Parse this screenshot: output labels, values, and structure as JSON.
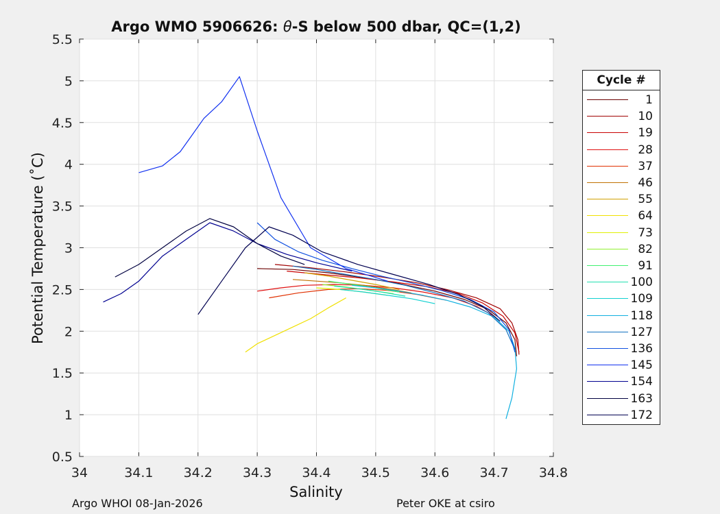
{
  "chart_data": {
    "type": "line",
    "title": "Argo WMO 5906626: θ-S below 500 dbar,  QC=(1,2)",
    "title_parts": {
      "prefix": "Argo WMO 5906626: ",
      "symbol": "θ",
      "suffix": "-S below 500 dbar,  QC=(1,2)"
    },
    "xlabel": "Salinity",
    "ylabel": "Potential Temperature (˚C)",
    "xlim": [
      34,
      34.8
    ],
    "ylim": [
      0.5,
      5.5
    ],
    "xticks": [
      "34",
      "34.1",
      "34.2",
      "34.3",
      "34.4",
      "34.5",
      "34.6",
      "34.7",
      "34.8"
    ],
    "yticks": [
      "0.5",
      "1",
      "1.5",
      "2",
      "2.5",
      "3",
      "3.5",
      "4",
      "4.5",
      "5",
      "5.5"
    ],
    "grid": true,
    "legend_title": "Cycle #",
    "legend_position": "outside-right",
    "legend": [
      {
        "label": "1",
        "color": "#6a0000"
      },
      {
        "label": "10",
        "color": "#a00000"
      },
      {
        "label": "19",
        "color": "#c80000"
      },
      {
        "label": "28",
        "color": "#e01010"
      },
      {
        "label": "37",
        "color": "#e03000"
      },
      {
        "label": "46",
        "color": "#c07000"
      },
      {
        "label": "55",
        "color": "#d0a000"
      },
      {
        "label": "64",
        "color": "#f0e000"
      },
      {
        "label": "73",
        "color": "#e0f000"
      },
      {
        "label": "82",
        "color": "#90f030"
      },
      {
        "label": "91",
        "color": "#40f070"
      },
      {
        "label": "100",
        "color": "#20e0b0"
      },
      {
        "label": "109",
        "color": "#10d0d0"
      },
      {
        "label": "118",
        "color": "#10b0e0"
      },
      {
        "label": "127",
        "color": "#1070c0"
      },
      {
        "label": "136",
        "color": "#1050e0"
      },
      {
        "label": "145",
        "color": "#1030f0"
      },
      {
        "label": "154",
        "color": "#000090"
      },
      {
        "label": "163",
        "color": "#000040"
      },
      {
        "label": "172",
        "color": "#000050"
      }
    ],
    "series": [
      {
        "name": "1",
        "color": "#6a0000",
        "x": [
          34.3,
          34.36,
          34.42,
          34.48,
          34.54,
          34.6,
          34.65,
          34.69,
          34.72,
          34.735,
          34.738
        ],
        "y": [
          2.75,
          2.74,
          2.7,
          2.64,
          2.57,
          2.48,
          2.38,
          2.26,
          2.1,
          1.9,
          1.7
        ]
      },
      {
        "name": "10",
        "color": "#a00000",
        "x": [
          34.33,
          34.39,
          34.45,
          34.51,
          34.57,
          34.62,
          34.67,
          34.71,
          34.73,
          34.74,
          34.742
        ],
        "y": [
          2.8,
          2.76,
          2.71,
          2.65,
          2.58,
          2.5,
          2.4,
          2.27,
          2.1,
          1.9,
          1.72
        ]
      },
      {
        "name": "19",
        "color": "#c80000",
        "x": [
          34.35,
          34.41,
          34.47,
          34.53,
          34.59,
          34.64,
          34.68,
          34.715,
          34.735,
          34.742
        ],
        "y": [
          2.72,
          2.68,
          2.64,
          2.59,
          2.53,
          2.45,
          2.34,
          2.18,
          1.98,
          1.75
        ]
      },
      {
        "name": "28",
        "color": "#e01010",
        "x": [
          34.3,
          34.34,
          34.38,
          34.43,
          34.48,
          34.53,
          34.58,
          34.63,
          34.67,
          34.7
        ],
        "y": [
          2.48,
          2.52,
          2.55,
          2.56,
          2.55,
          2.52,
          2.47,
          2.4,
          2.3,
          2.18
        ]
      },
      {
        "name": "37",
        "color": "#e03000",
        "x": [
          34.32,
          34.37,
          34.42,
          34.47,
          34.52,
          34.57,
          34.62
        ],
        "y": [
          2.4,
          2.46,
          2.5,
          2.51,
          2.49,
          2.44,
          2.37
        ]
      },
      {
        "name": "46",
        "color": "#c07000",
        "x": [
          34.36,
          34.4,
          34.44,
          34.48,
          34.52,
          34.56
        ],
        "y": [
          2.62,
          2.6,
          2.58,
          2.55,
          2.51,
          2.46
        ]
      },
      {
        "name": "55",
        "color": "#d0a000",
        "x": [
          34.38,
          34.42,
          34.46,
          34.5,
          34.54
        ],
        "y": [
          2.7,
          2.66,
          2.61,
          2.56,
          2.5
        ]
      },
      {
        "name": "64",
        "color": "#f0e000",
        "x": [
          34.28,
          34.3,
          34.33,
          34.36,
          34.39,
          34.42,
          34.45
        ],
        "y": [
          1.75,
          1.85,
          1.95,
          2.05,
          2.15,
          2.28,
          2.4
        ]
      },
      {
        "name": "73",
        "color": "#e0f000",
        "x": [
          34.4,
          34.44,
          34.48,
          34.52
        ],
        "y": [
          2.52,
          2.5,
          2.47,
          2.43
        ]
      },
      {
        "name": "82",
        "color": "#90f030",
        "x": [
          34.41,
          34.45,
          34.49,
          34.53
        ],
        "y": [
          2.56,
          2.53,
          2.49,
          2.45
        ]
      },
      {
        "name": "91",
        "color": "#40f070",
        "x": [
          34.42,
          34.46,
          34.5,
          34.54
        ],
        "y": [
          2.6,
          2.56,
          2.52,
          2.47
        ]
      },
      {
        "name": "100",
        "color": "#20e0b0",
        "x": [
          34.43,
          34.47,
          34.51,
          34.55
        ],
        "y": [
          2.54,
          2.51,
          2.47,
          2.42
        ]
      },
      {
        "name": "109",
        "color": "#10d0d0",
        "x": [
          34.44,
          34.48,
          34.52,
          34.56,
          34.6
        ],
        "y": [
          2.5,
          2.47,
          2.43,
          2.39,
          2.33
        ]
      },
      {
        "name": "118",
        "color": "#10b0e0",
        "x": [
          34.46,
          34.5,
          34.54,
          34.58,
          34.62,
          34.66,
          34.7,
          34.725,
          34.735,
          34.738,
          34.73,
          34.72
        ],
        "y": [
          2.55,
          2.52,
          2.48,
          2.43,
          2.37,
          2.29,
          2.17,
          2.0,
          1.8,
          1.55,
          1.2,
          0.95
        ]
      },
      {
        "name": "127",
        "color": "#1070c0",
        "x": [
          34.36,
          34.4,
          34.45,
          34.5,
          34.55,
          34.6,
          34.65,
          34.69,
          34.72,
          34.735
        ],
        "y": [
          2.78,
          2.74,
          2.68,
          2.62,
          2.55,
          2.46,
          2.36,
          2.22,
          2.02,
          1.78
        ]
      },
      {
        "name": "136",
        "color": "#1050e0",
        "x": [
          34.3,
          34.33,
          34.37,
          34.41,
          34.46,
          34.51,
          34.56,
          34.61,
          34.66,
          34.7,
          34.725,
          34.735
        ],
        "y": [
          3.3,
          3.1,
          2.95,
          2.85,
          2.75,
          2.66,
          2.58,
          2.49,
          2.38,
          2.23,
          2.02,
          1.75
        ]
      },
      {
        "name": "145",
        "color": "#1030f0",
        "x": [
          34.1,
          34.14,
          34.17,
          34.19,
          34.21,
          34.24,
          34.27,
          34.3,
          34.34,
          34.39,
          34.45,
          34.52
        ],
        "y": [
          3.9,
          3.98,
          4.15,
          4.35,
          4.55,
          4.75,
          5.05,
          4.4,
          3.6,
          3.0,
          2.75,
          2.6
        ]
      },
      {
        "name": "154",
        "color": "#000090",
        "x": [
          34.04,
          34.07,
          34.1,
          34.14,
          34.18,
          34.22,
          34.26,
          34.3,
          34.35,
          34.4,
          34.46
        ],
        "y": [
          2.35,
          2.45,
          2.6,
          2.9,
          3.1,
          3.3,
          3.2,
          3.05,
          2.92,
          2.82,
          2.72
        ]
      },
      {
        "name": "163",
        "color": "#000040",
        "x": [
          34.06,
          34.1,
          34.14,
          34.18,
          34.22,
          34.26,
          34.3,
          34.34,
          34.38
        ],
        "y": [
          2.65,
          2.8,
          3.0,
          3.2,
          3.35,
          3.25,
          3.05,
          2.9,
          2.8
        ]
      },
      {
        "name": "172",
        "color": "#000050",
        "x": [
          34.2,
          34.24,
          34.28,
          34.32,
          34.36,
          34.41,
          34.47,
          34.53,
          34.59,
          34.64,
          34.68,
          34.71
        ],
        "y": [
          2.2,
          2.6,
          3.0,
          3.25,
          3.15,
          2.95,
          2.8,
          2.68,
          2.56,
          2.44,
          2.3,
          2.12
        ]
      }
    ]
  },
  "footer": {
    "left": "Argo WHOI 08-Jan-2026",
    "right": "Peter OKE at csiro"
  }
}
